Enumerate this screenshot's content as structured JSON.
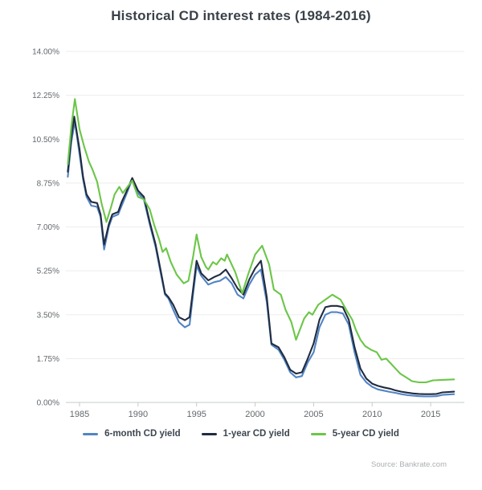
{
  "chart_data": {
    "type": "line",
    "title": "Historical CD interest rates (1984-2016)",
    "source": "Source: Bankrate.com",
    "xlabel": "",
    "ylabel": "",
    "grid": true,
    "legend_position": "bottom",
    "x_axis": {
      "tick_values": [
        1985,
        1990,
        1995,
        2000,
        2005,
        2010,
        2015
      ],
      "range": [
        1983.6,
        2017.8
      ]
    },
    "y_axis": {
      "tick_values": [
        0,
        1.75,
        3.5,
        5.25,
        7.0,
        8.75,
        10.5,
        12.25,
        14.0
      ],
      "tick_labels": [
        "0.00%",
        "1.75%",
        "3.50%",
        "5.25%",
        "7.00%",
        "8.75%",
        "10.50%",
        "12.25%",
        "14.00%"
      ],
      "range": [
        0,
        14
      ]
    },
    "series": [
      {
        "name": "6-month CD yield",
        "color": "#5184c4",
        "points": [
          [
            1984.0,
            9.0
          ],
          [
            1984.3,
            10.4
          ],
          [
            1984.6,
            11.2
          ],
          [
            1985.0,
            9.9
          ],
          [
            1985.3,
            8.9
          ],
          [
            1985.6,
            8.2
          ],
          [
            1986.0,
            7.85
          ],
          [
            1986.5,
            7.8
          ],
          [
            1986.8,
            7.4
          ],
          [
            1987.1,
            6.1
          ],
          [
            1987.5,
            7.0
          ],
          [
            1987.8,
            7.4
          ],
          [
            1988.3,
            7.5
          ],
          [
            1988.6,
            7.85
          ],
          [
            1989.0,
            8.3
          ],
          [
            1989.5,
            8.9
          ],
          [
            1990.0,
            8.35
          ],
          [
            1990.5,
            8.1
          ],
          [
            1991.0,
            7.1
          ],
          [
            1991.5,
            6.2
          ],
          [
            1992.0,
            5.0
          ],
          [
            1992.3,
            4.3
          ],
          [
            1992.6,
            4.15
          ],
          [
            1993.0,
            3.7
          ],
          [
            1993.5,
            3.2
          ],
          [
            1994.0,
            3.0
          ],
          [
            1994.4,
            3.1
          ],
          [
            1994.7,
            4.3
          ],
          [
            1995.0,
            5.45
          ],
          [
            1995.4,
            5.05
          ],
          [
            1996.0,
            4.7
          ],
          [
            1996.5,
            4.8
          ],
          [
            1997.0,
            4.85
          ],
          [
            1997.5,
            5.0
          ],
          [
            1998.0,
            4.75
          ],
          [
            1998.5,
            4.3
          ],
          [
            1999.0,
            4.15
          ],
          [
            1999.5,
            4.7
          ],
          [
            2000.0,
            5.1
          ],
          [
            2000.5,
            5.3
          ],
          [
            2001.0,
            4.0
          ],
          [
            2001.4,
            2.3
          ],
          [
            2002.0,
            2.1
          ],
          [
            2002.5,
            1.7
          ],
          [
            2003.0,
            1.2
          ],
          [
            2003.5,
            1.0
          ],
          [
            2004.0,
            1.05
          ],
          [
            2004.5,
            1.6
          ],
          [
            2005.0,
            2.0
          ],
          [
            2005.5,
            3.0
          ],
          [
            2006.0,
            3.5
          ],
          [
            2006.5,
            3.6
          ],
          [
            2007.0,
            3.6
          ],
          [
            2007.5,
            3.55
          ],
          [
            2008.0,
            3.1
          ],
          [
            2008.5,
            2.0
          ],
          [
            2009.0,
            1.1
          ],
          [
            2009.5,
            0.8
          ],
          [
            2010.0,
            0.62
          ],
          [
            2010.5,
            0.52
          ],
          [
            2011.0,
            0.47
          ],
          [
            2011.5,
            0.42
          ],
          [
            2012.0,
            0.38
          ],
          [
            2012.5,
            0.33
          ],
          [
            2013.0,
            0.29
          ],
          [
            2013.5,
            0.27
          ],
          [
            2014.0,
            0.25
          ],
          [
            2014.5,
            0.24
          ],
          [
            2015.0,
            0.24
          ],
          [
            2015.5,
            0.25
          ],
          [
            2016.0,
            0.3
          ],
          [
            2017.0,
            0.33
          ]
        ]
      },
      {
        "name": "1-year CD yield",
        "color": "#212c40",
        "points": [
          [
            1984.0,
            9.2
          ],
          [
            1984.3,
            10.6
          ],
          [
            1984.55,
            11.4
          ],
          [
            1985.0,
            10.1
          ],
          [
            1985.3,
            9.0
          ],
          [
            1985.6,
            8.3
          ],
          [
            1986.0,
            8.0
          ],
          [
            1986.5,
            7.95
          ],
          [
            1986.8,
            7.5
          ],
          [
            1987.1,
            6.3
          ],
          [
            1987.5,
            7.1
          ],
          [
            1987.8,
            7.5
          ],
          [
            1988.3,
            7.6
          ],
          [
            1988.6,
            8.0
          ],
          [
            1989.0,
            8.4
          ],
          [
            1989.5,
            8.95
          ],
          [
            1990.0,
            8.45
          ],
          [
            1990.5,
            8.2
          ],
          [
            1991.0,
            7.2
          ],
          [
            1991.5,
            6.3
          ],
          [
            1992.0,
            5.1
          ],
          [
            1992.3,
            4.35
          ],
          [
            1992.6,
            4.2
          ],
          [
            1993.0,
            3.9
          ],
          [
            1993.5,
            3.4
          ],
          [
            1994.0,
            3.28
          ],
          [
            1994.4,
            3.4
          ],
          [
            1994.7,
            4.5
          ],
          [
            1995.0,
            5.65
          ],
          [
            1995.4,
            5.15
          ],
          [
            1996.0,
            4.87
          ],
          [
            1996.5,
            5.0
          ],
          [
            1997.0,
            5.1
          ],
          [
            1997.5,
            5.3
          ],
          [
            1998.0,
            4.95
          ],
          [
            1998.5,
            4.55
          ],
          [
            1999.0,
            4.3
          ],
          [
            1999.5,
            4.9
          ],
          [
            2000.0,
            5.35
          ],
          [
            2000.5,
            5.65
          ],
          [
            2001.0,
            4.2
          ],
          [
            2001.4,
            2.35
          ],
          [
            2002.0,
            2.2
          ],
          [
            2002.5,
            1.8
          ],
          [
            2003.0,
            1.3
          ],
          [
            2003.5,
            1.15
          ],
          [
            2004.0,
            1.2
          ],
          [
            2004.5,
            1.75
          ],
          [
            2005.0,
            2.35
          ],
          [
            2005.5,
            3.3
          ],
          [
            2006.0,
            3.8
          ],
          [
            2006.5,
            3.85
          ],
          [
            2007.0,
            3.85
          ],
          [
            2007.5,
            3.8
          ],
          [
            2008.0,
            3.3
          ],
          [
            2008.5,
            2.2
          ],
          [
            2009.0,
            1.35
          ],
          [
            2009.5,
            0.95
          ],
          [
            2010.0,
            0.75
          ],
          [
            2010.5,
            0.66
          ],
          [
            2011.0,
            0.6
          ],
          [
            2011.5,
            0.55
          ],
          [
            2012.0,
            0.48
          ],
          [
            2012.5,
            0.43
          ],
          [
            2013.0,
            0.39
          ],
          [
            2013.5,
            0.36
          ],
          [
            2014.0,
            0.34
          ],
          [
            2014.5,
            0.33
          ],
          [
            2015.0,
            0.33
          ],
          [
            2015.5,
            0.34
          ],
          [
            2016.0,
            0.4
          ],
          [
            2017.0,
            0.43
          ]
        ]
      },
      {
        "name": "5-year CD yield",
        "color": "#6bc648",
        "points": [
          [
            1984.0,
            9.5
          ],
          [
            1984.3,
            11.0
          ],
          [
            1984.6,
            12.1
          ],
          [
            1985.0,
            10.9
          ],
          [
            1985.4,
            10.2
          ],
          [
            1985.8,
            9.6
          ],
          [
            1986.1,
            9.3
          ],
          [
            1986.5,
            8.8
          ],
          [
            1986.9,
            7.9
          ],
          [
            1987.3,
            7.2
          ],
          [
            1987.7,
            7.8
          ],
          [
            1988.0,
            8.3
          ],
          [
            1988.4,
            8.6
          ],
          [
            1988.7,
            8.35
          ],
          [
            1989.1,
            8.6
          ],
          [
            1989.5,
            8.85
          ],
          [
            1990.0,
            8.2
          ],
          [
            1990.5,
            8.1
          ],
          [
            1991.0,
            7.7
          ],
          [
            1991.4,
            7.05
          ],
          [
            1991.8,
            6.5
          ],
          [
            1992.1,
            6.0
          ],
          [
            1992.4,
            6.15
          ],
          [
            1992.8,
            5.6
          ],
          [
            1993.3,
            5.1
          ],
          [
            1993.9,
            4.75
          ],
          [
            1994.3,
            4.85
          ],
          [
            1994.7,
            5.8
          ],
          [
            1995.0,
            6.7
          ],
          [
            1995.4,
            5.8
          ],
          [
            1995.8,
            5.4
          ],
          [
            1996.0,
            5.3
          ],
          [
            1996.4,
            5.6
          ],
          [
            1996.7,
            5.5
          ],
          [
            1997.1,
            5.75
          ],
          [
            1997.4,
            5.65
          ],
          [
            1997.6,
            5.9
          ],
          [
            1998.3,
            5.2
          ],
          [
            1998.9,
            4.35
          ],
          [
            1999.4,
            5.1
          ],
          [
            2000.0,
            5.9
          ],
          [
            2000.6,
            6.25
          ],
          [
            2001.2,
            5.5
          ],
          [
            2001.6,
            4.5
          ],
          [
            2002.2,
            4.3
          ],
          [
            2002.6,
            3.7
          ],
          [
            2003.1,
            3.2
          ],
          [
            2003.5,
            2.5
          ],
          [
            2004.2,
            3.35
          ],
          [
            2004.6,
            3.6
          ],
          [
            2004.9,
            3.5
          ],
          [
            2005.4,
            3.9
          ],
          [
            2006.0,
            4.1
          ],
          [
            2006.6,
            4.3
          ],
          [
            2007.3,
            4.1
          ],
          [
            2007.9,
            3.6
          ],
          [
            2008.3,
            3.3
          ],
          [
            2008.6,
            2.9
          ],
          [
            2009.0,
            2.5
          ],
          [
            2009.4,
            2.25
          ],
          [
            2009.9,
            2.1
          ],
          [
            2010.4,
            2.0
          ],
          [
            2010.8,
            1.7
          ],
          [
            2011.2,
            1.75
          ],
          [
            2011.6,
            1.55
          ],
          [
            2012.0,
            1.35
          ],
          [
            2012.4,
            1.15
          ],
          [
            2012.9,
            1.0
          ],
          [
            2013.4,
            0.85
          ],
          [
            2014.0,
            0.8
          ],
          [
            2014.6,
            0.8
          ],
          [
            2015.2,
            0.88
          ],
          [
            2016.0,
            0.9
          ],
          [
            2017.0,
            0.92
          ]
        ]
      }
    ],
    "colors": {
      "grid": "#ededee",
      "axis": "#c6cacc",
      "tick_label": "#63686d",
      "title": "#3a4149",
      "source_text": "#abafb2"
    }
  }
}
